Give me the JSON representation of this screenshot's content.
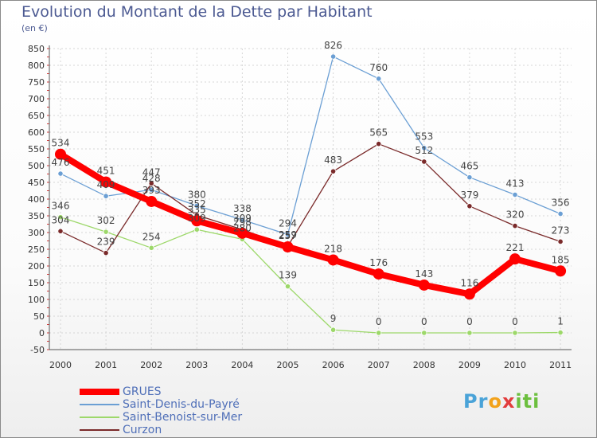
{
  "chart_data": {
    "type": "line",
    "title": "Evolution du Montant de la Dette par Habitant",
    "unit": "(en €)",
    "categories": [
      "2000",
      "2001",
      "2002",
      "2003",
      "2004",
      "2005",
      "2006",
      "2007",
      "2008",
      "2009",
      "2010",
      "2011"
    ],
    "y_ticks": [
      -50,
      0,
      50,
      100,
      150,
      200,
      250,
      300,
      350,
      400,
      450,
      500,
      550,
      600,
      650,
      700,
      750,
      800,
      850
    ],
    "ylim": [
      -50,
      850
    ],
    "grid": true,
    "legend_position": "bottom-left",
    "series": [
      {
        "name": "GRUES",
        "color": "#ff0000",
        "values": [
          534,
          451,
          393,
          335,
          298,
          257,
          218,
          176,
          143,
          116,
          221,
          185
        ]
      },
      {
        "name": "Saint-Denis-du-Payré",
        "color": "#6b9fd4",
        "values": [
          476,
          409,
          428,
          380,
          338,
          294,
          826,
          760,
          553,
          465,
          413,
          356
        ]
      },
      {
        "name": "Saint-Benoist-sur-Mer",
        "color": "#9dd86a",
        "values": [
          346,
          302,
          254,
          309,
          280,
          139,
          9,
          0,
          0,
          0,
          0,
          1
        ]
      },
      {
        "name": "Curzon",
        "color": "#7a2a2a",
        "values": [
          304,
          239,
          447,
          352,
          309,
          259,
          483,
          565,
          512,
          379,
          320,
          273
        ]
      }
    ],
    "data_labels": [
      [
        "534",
        "451",
        "393",
        "335",
        "298",
        "257",
        "218",
        "176",
        "143",
        "116",
        "221",
        "185"
      ],
      [
        "476",
        "409",
        "428",
        "380",
        "338",
        "294",
        "826",
        "760",
        "553",
        "465",
        "413",
        "356"
      ],
      [
        "346",
        "302",
        "254",
        "309",
        "280",
        "139",
        "9",
        "0",
        "0",
        "0",
        "0",
        "1"
      ],
      [
        "304",
        "239",
        "447",
        "352",
        "309",
        "259",
        "483",
        "565",
        "512",
        "379",
        "320",
        "273"
      ]
    ]
  },
  "logo": {
    "text": "Proxiti"
  }
}
